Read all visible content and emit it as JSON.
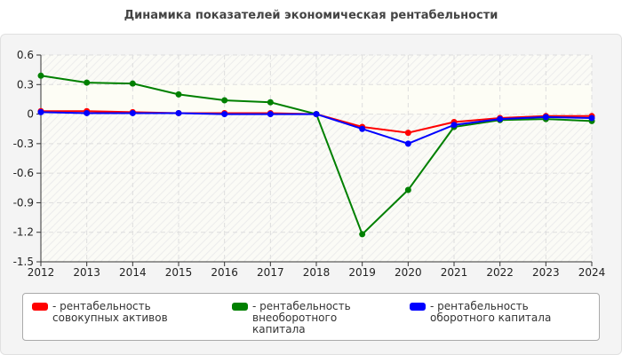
{
  "chart_data": {
    "type": "line",
    "title": "Динамика показателей экономическая рентабельности",
    "x": [
      "2012",
      "2013",
      "2014",
      "2015",
      "2016",
      "2017",
      "2018",
      "2019",
      "2020",
      "2021",
      "2022",
      "2023",
      "2024"
    ],
    "ylim": [
      -1.5,
      0.6
    ],
    "yticks": [
      "0.6",
      "0.3",
      "0",
      "-0.3",
      "-0.6",
      "-0.9",
      "-1.2",
      "-1.5"
    ],
    "grid": true,
    "legend_position": "bottom",
    "series": [
      {
        "name": "- рентабельность совокупных активов",
        "color": "#ff0000",
        "values": [
          0.03,
          0.03,
          0.02,
          0.01,
          0.01,
          0.01,
          0.0,
          -0.13,
          -0.19,
          -0.08,
          -0.04,
          -0.02,
          -0.02
        ]
      },
      {
        "name": "- рентабельность внеоборотного капитала",
        "color": "#008000",
        "values": [
          0.39,
          0.32,
          0.31,
          0.2,
          0.14,
          0.12,
          0.0,
          -1.22,
          -0.77,
          -0.13,
          -0.06,
          -0.05,
          -0.07
        ]
      },
      {
        "name": "- рентабельность оборотного капитала",
        "color": "#0000ff",
        "values": [
          0.02,
          0.01,
          0.01,
          0.01,
          0.0,
          0.0,
          0.0,
          -0.15,
          -0.3,
          -0.11,
          -0.05,
          -0.03,
          -0.04
        ]
      }
    ]
  }
}
